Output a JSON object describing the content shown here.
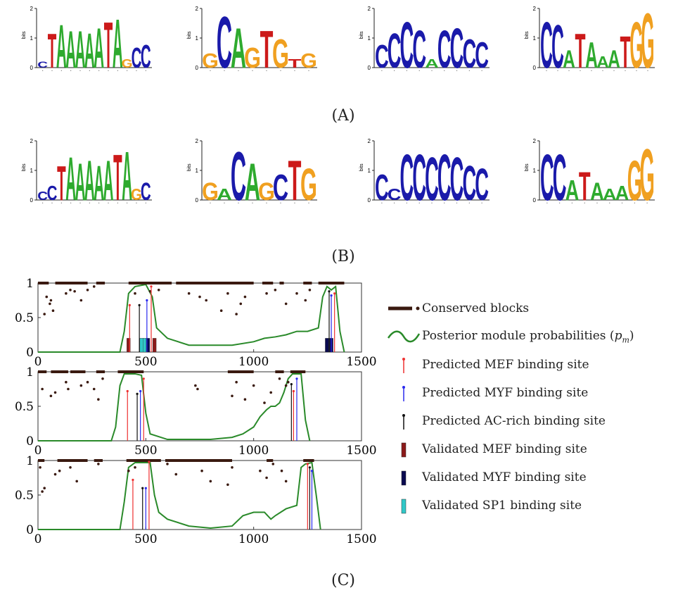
{
  "panel_labels": {
    "a": "(A)",
    "b": "(B)",
    "c": "(C)"
  },
  "logo_axis": {
    "ylabel": "bits",
    "ticks": [
      "0",
      "1",
      "2"
    ]
  },
  "logos_a": [
    {
      "letters": [
        "C",
        "T",
        "A",
        "A",
        "A",
        "A",
        "A",
        "T",
        "A",
        "G",
        "C",
        "C"
      ],
      "heights": [
        0.2,
        1.2,
        1.5,
        1.3,
        1.3,
        1.2,
        1.4,
        1.6,
        1.7,
        0.3,
        0.7,
        0.8
      ]
    },
    {
      "letters": [
        "G",
        "C",
        "A",
        "G",
        "T",
        "G",
        "T",
        "G"
      ],
      "heights": [
        0.5,
        1.8,
        1.4,
        0.7,
        1.3,
        1.0,
        0.3,
        0.5
      ]
    },
    {
      "letters": [
        "C",
        "C",
        "C",
        "C",
        "A",
        "C",
        "C",
        "C",
        "C"
      ],
      "heights": [
        0.8,
        1.2,
        1.6,
        1.3,
        0.3,
        1.3,
        1.4,
        1.0,
        0.9
      ]
    },
    {
      "letters": [
        "C",
        "C",
        "A",
        "T",
        "A",
        "A",
        "A",
        "T",
        "G",
        "G"
      ],
      "heights": [
        1.6,
        1.5,
        0.6,
        1.2,
        0.9,
        0.4,
        0.6,
        1.1,
        1.6,
        1.9
      ]
    }
  ],
  "logos_b": [
    {
      "letters": [
        "C",
        "C",
        "T",
        "A",
        "A",
        "A",
        "A",
        "A",
        "T",
        "A",
        "G",
        "C"
      ],
      "heights": [
        0.3,
        0.5,
        1.2,
        1.5,
        1.3,
        1.4,
        1.2,
        1.4,
        1.6,
        1.7,
        0.4,
        0.6
      ]
    },
    {
      "letters": [
        "G",
        "A",
        "C",
        "A",
        "G",
        "C",
        "T",
        "G"
      ],
      "heights": [
        0.6,
        0.4,
        1.7,
        1.3,
        0.6,
        0.9,
        1.4,
        1.1
      ]
    },
    {
      "letters": [
        "C",
        "C",
        "C",
        "C",
        "C",
        "C",
        "C",
        "C",
        "C"
      ],
      "heights": [
        0.9,
        0.4,
        1.6,
        1.6,
        1.5,
        1.6,
        1.5,
        1.2,
        1.1
      ]
    },
    {
      "letters": [
        "C",
        "C",
        "A",
        "T",
        "A",
        "A",
        "A",
        "G",
        "G"
      ],
      "heights": [
        1.6,
        1.6,
        0.7,
        1.0,
        0.6,
        0.4,
        0.5,
        1.4,
        1.8
      ]
    }
  ],
  "legend": {
    "conserved": "Conserved blocks",
    "posterior": "Posterior module probabilities (",
    "posterior_sym": "p",
    "posterior_sub": "m",
    "posterior_end": ")",
    "pred_mef": "Predicted MEF binding site",
    "pred_myf": "Predicted MYF binding site",
    "pred_ac": "Predicted AC-rich binding site",
    "val_mef": "Validated MEF binding site",
    "val_myf": "Validated MYF binding site",
    "val_sp1": "Validated SP1 binding site"
  },
  "colors": {
    "A": "#2eaa2e",
    "C": "#1a1aaa",
    "G": "#f0a020",
    "T": "#cc1a1a",
    "conserved": "#3a1a10",
    "posterior": "#2a8a2a",
    "mef": "#ee3030",
    "myf": "#2a2aee",
    "ac": "#111111",
    "val_mef": "#8b1a1a",
    "val_myf": "#0a0a50",
    "val_sp1": "#30c8c8"
  },
  "chart_data": [
    {
      "type": "line",
      "xlim": [
        0,
        1500
      ],
      "ylim": [
        0,
        1
      ],
      "xticks": [
        "0",
        "500",
        "1000",
        "1500"
      ],
      "yticks": [
        "0",
        "0.5",
        "1"
      ],
      "posterior": {
        "x": [
          0,
          380,
          400,
          420,
          450,
          500,
          530,
          550,
          600,
          700,
          800,
          900,
          1000,
          1050,
          1100,
          1150,
          1200,
          1250,
          1300,
          1320,
          1340,
          1360,
          1380,
          1400,
          1420
        ],
        "y": [
          0,
          0,
          0.3,
          0.85,
          0.95,
          0.98,
          0.8,
          0.35,
          0.2,
          0.1,
          0.1,
          0.1,
          0.15,
          0.2,
          0.22,
          0.25,
          0.3,
          0.3,
          0.35,
          0.8,
          0.95,
          0.9,
          0.95,
          0.3,
          0
        ]
      },
      "conserved_blocks": [
        [
          0,
          50
        ],
        [
          80,
          230
        ],
        [
          270,
          310
        ],
        [
          420,
          620
        ],
        [
          640,
          1000
        ],
        [
          1040,
          1090
        ],
        [
          1120,
          1140
        ],
        [
          1230,
          1270
        ],
        [
          1300,
          1420
        ]
      ],
      "conserved_points": {
        "x": [
          30,
          40,
          55,
          60,
          70,
          130,
          150,
          170,
          200,
          230,
          260,
          450,
          520,
          560,
          700,
          750,
          780,
          850,
          880,
          920,
          940,
          960,
          1060,
          1100,
          1150,
          1200,
          1240,
          1260
        ],
        "y": [
          0.55,
          0.8,
          0.7,
          0.75,
          0.6,
          0.85,
          0.9,
          0.88,
          0.75,
          0.9,
          0.95,
          0.85,
          0.88,
          0.9,
          0.85,
          0.8,
          0.75,
          0.6,
          0.85,
          0.55,
          0.7,
          0.8,
          0.85,
          0.9,
          0.7,
          0.85,
          0.75,
          0.9
        ]
      },
      "pred_mef": [
        {
          "x": 425,
          "y": 0.68
        },
        {
          "x": 525,
          "y": 0.95
        },
        {
          "x": 1375,
          "y": 0.85
        }
      ],
      "pred_myf": [
        {
          "x": 505,
          "y": 0.75
        },
        {
          "x": 1360,
          "y": 0.82
        }
      ],
      "pred_ac": [
        {
          "x": 470,
          "y": 0.68
        },
        {
          "x": 1350,
          "y": 0.88
        }
      ],
      "val_mef": [
        {
          "x": 420,
          "y": 0.2
        },
        {
          "x": 540,
          "y": 0.2
        }
      ],
      "val_myf": [
        {
          "x": 510,
          "y": 0.2
        },
        {
          "x": 1340,
          "y": 0.2
        },
        {
          "x": 1360,
          "y": 0.2
        }
      ],
      "val_sp1": [
        {
          "x": 480,
          "y": 0.2
        },
        {
          "x": 495,
          "y": 0.2
        }
      ]
    },
    {
      "type": "line",
      "xlim": [
        0,
        1500
      ],
      "ylim": [
        0,
        1
      ],
      "xticks": [
        "0",
        "500",
        "1000",
        "1500"
      ],
      "yticks": [
        "0",
        "0.5",
        "1"
      ],
      "posterior": {
        "x": [
          0,
          340,
          360,
          380,
          400,
          450,
          480,
          500,
          520,
          600,
          700,
          800,
          900,
          950,
          1000,
          1030,
          1060,
          1080,
          1100,
          1120,
          1140,
          1160,
          1180,
          1200,
          1220,
          1240,
          1260
        ],
        "y": [
          0,
          0,
          0.2,
          0.8,
          0.97,
          0.97,
          0.95,
          0.4,
          0.1,
          0.02,
          0.02,
          0.02,
          0.05,
          0.1,
          0.2,
          0.35,
          0.45,
          0.5,
          0.5,
          0.55,
          0.7,
          0.9,
          0.97,
          0.97,
          0.97,
          0.3,
          0
        ]
      },
      "conserved_blocks": [
        [
          0,
          40
        ],
        [
          60,
          140
        ],
        [
          150,
          220
        ],
        [
          270,
          310
        ],
        [
          370,
          490
        ],
        [
          880,
          1000
        ],
        [
          1100,
          1140
        ],
        [
          1170,
          1240
        ]
      ],
      "conserved_points": {
        "x": [
          20,
          60,
          80,
          130,
          140,
          200,
          230,
          260,
          280,
          300,
          730,
          740,
          900,
          920,
          960,
          1000,
          1050,
          1080,
          1120,
          1150,
          1160
        ],
        "y": [
          0.75,
          0.65,
          0.7,
          0.85,
          0.75,
          0.8,
          0.85,
          0.75,
          0.6,
          0.9,
          0.8,
          0.75,
          0.65,
          0.85,
          0.6,
          0.8,
          0.55,
          0.7,
          0.9,
          0.8,
          0.85
        ]
      },
      "pred_mef": [
        {
          "x": 415,
          "y": 0.72
        },
        {
          "x": 490,
          "y": 0.9
        },
        {
          "x": 1185,
          "y": 0.72
        }
      ],
      "pred_myf": [
        {
          "x": 475,
          "y": 0.72
        },
        {
          "x": 1200,
          "y": 0.9
        }
      ],
      "pred_ac": [
        {
          "x": 460,
          "y": 0.68
        },
        {
          "x": 1175,
          "y": 0.82
        }
      ],
      "val_mef": [],
      "val_myf": [],
      "val_sp1": []
    },
    {
      "type": "line",
      "xlim": [
        0,
        1500
      ],
      "ylim": [
        0,
        1
      ],
      "xticks": [
        "0",
        "500",
        "1000",
        "1500"
      ],
      "yticks": [
        "0",
        "0.5",
        "1"
      ],
      "posterior": {
        "x": [
          0,
          380,
          400,
          420,
          450,
          500,
          520,
          540,
          560,
          600,
          700,
          800,
          900,
          950,
          1000,
          1050,
          1080,
          1100,
          1150,
          1200,
          1220,
          1240,
          1270,
          1290,
          1310
        ],
        "y": [
          0,
          0,
          0.4,
          0.9,
          0.97,
          0.97,
          0.97,
          0.5,
          0.25,
          0.15,
          0.05,
          0.02,
          0.05,
          0.2,
          0.25,
          0.25,
          0.15,
          0.2,
          0.3,
          0.35,
          0.9,
          0.95,
          0.97,
          0.5,
          0
        ]
      },
      "conserved_blocks": [
        [
          0,
          30
        ],
        [
          90,
          230
        ],
        [
          260,
          300
        ],
        [
          410,
          570
        ],
        [
          590,
          900
        ],
        [
          1060,
          1090
        ],
        [
          1230,
          1280
        ]
      ],
      "conserved_points": {
        "x": [
          10,
          20,
          30,
          80,
          100,
          150,
          180,
          280,
          420,
          450,
          600,
          640,
          760,
          800,
          880,
          900,
          1030,
          1060,
          1090,
          1130,
          1150
        ],
        "y": [
          0.9,
          0.55,
          0.6,
          0.8,
          0.85,
          0.9,
          0.7,
          0.95,
          0.85,
          0.9,
          0.95,
          0.8,
          0.85,
          0.7,
          0.65,
          0.9,
          0.85,
          0.75,
          0.95,
          0.85,
          0.7
        ]
      },
      "pred_mef": [
        {
          "x": 440,
          "y": 0.72
        },
        {
          "x": 515,
          "y": 0.98
        },
        {
          "x": 1250,
          "y": 0.95
        }
      ],
      "pred_myf": [
        {
          "x": 500,
          "y": 0.6
        },
        {
          "x": 1270,
          "y": 0.85
        }
      ],
      "pred_ac": [
        {
          "x": 485,
          "y": 0.6
        },
        {
          "x": 1260,
          "y": 0.9
        }
      ],
      "val_mef": [],
      "val_myf": [],
      "val_sp1": []
    }
  ]
}
